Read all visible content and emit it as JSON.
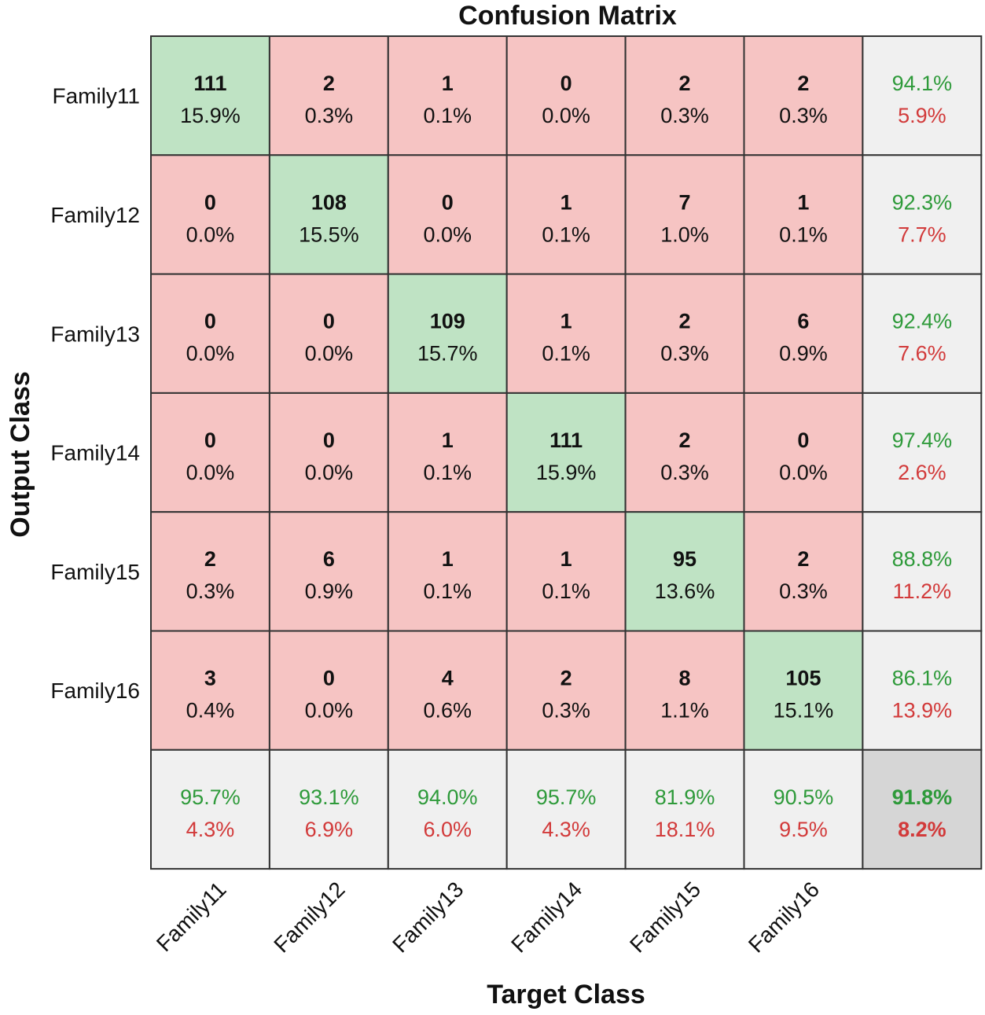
{
  "chart_data": {
    "type": "heatmap",
    "title": "Confusion Matrix",
    "xlabel": "Target Class",
    "ylabel": "Output Class",
    "output_classes": [
      "Family11",
      "Family12",
      "Family13",
      "Family14",
      "Family15",
      "Family16"
    ],
    "target_classes": [
      "Family11",
      "Family12",
      "Family13",
      "Family14",
      "Family15",
      "Family16"
    ],
    "counts": [
      [
        111,
        2,
        1,
        0,
        2,
        2
      ],
      [
        0,
        108,
        0,
        1,
        7,
        1
      ],
      [
        0,
        0,
        109,
        1,
        2,
        6
      ],
      [
        0,
        0,
        1,
        111,
        2,
        0
      ],
      [
        2,
        6,
        1,
        1,
        95,
        2
      ],
      [
        3,
        0,
        4,
        2,
        8,
        105
      ]
    ],
    "percentages": [
      [
        "15.9%",
        "0.3%",
        "0.1%",
        "0.0%",
        "0.3%",
        "0.3%"
      ],
      [
        "0.0%",
        "15.5%",
        "0.0%",
        "0.1%",
        "1.0%",
        "0.1%"
      ],
      [
        "0.0%",
        "0.0%",
        "15.7%",
        "0.1%",
        "0.3%",
        "0.9%"
      ],
      [
        "0.0%",
        "0.0%",
        "0.1%",
        "15.9%",
        "0.3%",
        "0.0%"
      ],
      [
        "0.3%",
        "0.9%",
        "0.1%",
        "0.1%",
        "13.6%",
        "0.3%"
      ],
      [
        "0.4%",
        "0.0%",
        "0.6%",
        "0.3%",
        "1.1%",
        "15.1%"
      ]
    ],
    "row_summary": [
      {
        "correct": "94.1%",
        "incorrect": "5.9%"
      },
      {
        "correct": "92.3%",
        "incorrect": "7.7%"
      },
      {
        "correct": "92.4%",
        "incorrect": "7.6%"
      },
      {
        "correct": "97.4%",
        "incorrect": "2.6%"
      },
      {
        "correct": "88.8%",
        "incorrect": "11.2%"
      },
      {
        "correct": "86.1%",
        "incorrect": "13.9%"
      }
    ],
    "col_summary": [
      {
        "correct": "95.7%",
        "incorrect": "4.3%"
      },
      {
        "correct": "93.1%",
        "incorrect": "6.9%"
      },
      {
        "correct": "94.0%",
        "incorrect": "6.0%"
      },
      {
        "correct": "95.7%",
        "incorrect": "4.3%"
      },
      {
        "correct": "81.9%",
        "incorrect": "18.1%"
      },
      {
        "correct": "90.5%",
        "incorrect": "9.5%"
      }
    ],
    "overall": {
      "correct": "91.8%",
      "incorrect": "8.2%"
    },
    "colors": {
      "diagonal": "#bfe3c4",
      "off_diagonal": "#f6c4c3",
      "summary": "#f0f0f0",
      "overall": "#d6d6d6",
      "border": "#333333",
      "good_text": "#2e9a3a",
      "bad_text": "#d23a3a"
    }
  }
}
